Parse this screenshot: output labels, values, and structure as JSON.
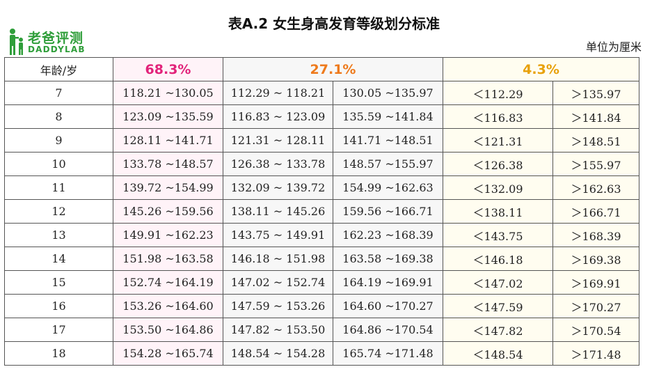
{
  "logo": {
    "cn": "老爸评测",
    "en": "DADDYLAB"
  },
  "title": "表A.2  女生身高发育等级划分标准",
  "unit": "单位为厘米",
  "colors": {
    "pct1": "#e2237a",
    "pct2": "#ee7a1c",
    "pct3": "#e8a10a",
    "logo_green": "#2f9e3a"
  },
  "table": {
    "age_header": "年龄/岁",
    "pct_headers": [
      "68.3%",
      "27.1%",
      "4.3%"
    ],
    "rows": [
      {
        "age": "7",
        "r1": "118.21 ~130.05",
        "r2a": "112.29 ~ 118.21",
        "r2b": "130.05 ~135.97",
        "r3a": "＜112.29",
        "r3b": "＞135.97"
      },
      {
        "age": "8",
        "r1": "123.09 ~135.59",
        "r2a": "116.83 ~ 123.09",
        "r2b": "135.59 ~141.84",
        "r3a": "＜116.83",
        "r3b": "＞141.84"
      },
      {
        "age": "9",
        "r1": "128.11 ~141.71",
        "r2a": "121.31 ~ 128.11",
        "r2b": "141.71 ~148.51",
        "r3a": "＜121.31",
        "r3b": "＞148.51"
      },
      {
        "age": "10",
        "r1": "133.78 ~148.57",
        "r2a": "126.38 ~ 133.78",
        "r2b": "148.57 ~155.97",
        "r3a": "＜126.38",
        "r3b": "＞155.97"
      },
      {
        "age": "11",
        "r1": "139.72 ~154.99",
        "r2a": "132.09 ~ 139.72",
        "r2b": "154.99 ~162.63",
        "r3a": "＜132.09",
        "r3b": "＞162.63"
      },
      {
        "age": "12",
        "r1": "145.26 ~159.56",
        "r2a": "138.11 ~ 145.26",
        "r2b": "159.56 ~166.71",
        "r3a": "＜138.11",
        "r3b": "＞166.71"
      },
      {
        "age": "13",
        "r1": "149.91 ~162.23",
        "r2a": "143.75 ~ 149.91",
        "r2b": "162.23 ~168.39",
        "r3a": "＜143.75",
        "r3b": "＞168.39"
      },
      {
        "age": "14",
        "r1": "151.98 ~163.58",
        "r2a": "146.18 ~ 151.98",
        "r2b": "163.58 ~169.38",
        "r3a": "＜146.18",
        "r3b": "＞169.38"
      },
      {
        "age": "15",
        "r1": "152.74 ~164.19",
        "r2a": "147.02 ~ 152.74",
        "r2b": "164.19 ~169.91",
        "r3a": "＜147.02",
        "r3b": "＞169.91"
      },
      {
        "age": "16",
        "r1": "153.26 ~164.60",
        "r2a": "147.59 ~ 153.26",
        "r2b": "164.60 ~170.27",
        "r3a": "＜147.59",
        "r3b": "＞170.27"
      },
      {
        "age": "17",
        "r1": "153.50 ~164.86",
        "r2a": "147.82 ~ 153.50",
        "r2b": "164.86 ~170.54",
        "r3a": "＜147.82",
        "r3b": "＞170.54"
      },
      {
        "age": "18",
        "r1": "154.28 ~165.74",
        "r2a": "148.54 ~ 154.28",
        "r2b": "165.74 ~171.48",
        "r3a": "＜148.54",
        "r3b": "＞171.48"
      }
    ]
  }
}
